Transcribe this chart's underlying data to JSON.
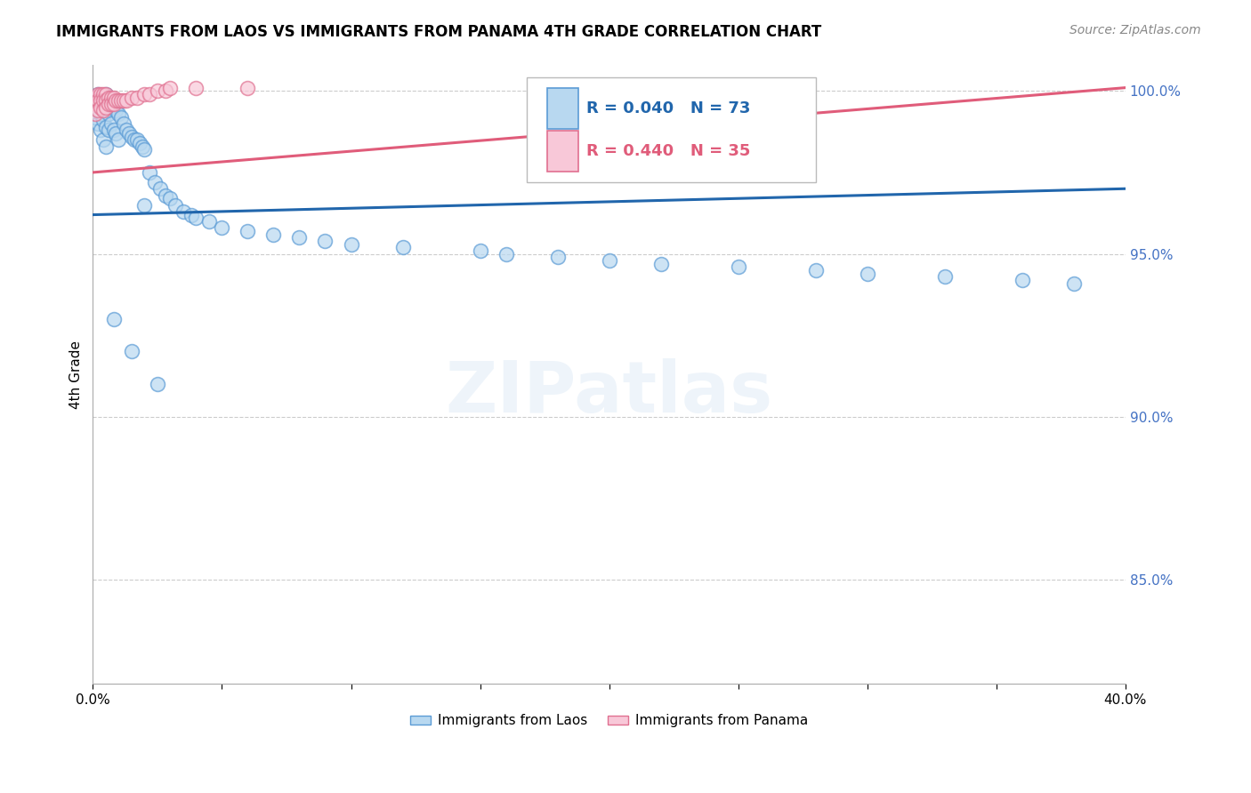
{
  "title": "IMMIGRANTS FROM LAOS VS IMMIGRANTS FROM PANAMA 4TH GRADE CORRELATION CHART",
  "source": "Source: ZipAtlas.com",
  "ylabel": "4th Grade",
  "watermark": "ZIPatlas",
  "x_min": 0.0,
  "x_max": 0.4,
  "y_min": 0.818,
  "y_max": 1.008,
  "y_ticks": [
    0.85,
    0.9,
    0.95,
    1.0
  ],
  "y_tick_labels": [
    "85.0%",
    "90.0%",
    "95.0%",
    "100.0%"
  ],
  "legend_laos": "Immigrants from Laos",
  "legend_panama": "Immigrants from Panama",
  "r_laos": 0.04,
  "n_laos": 73,
  "r_panama": 0.44,
  "n_panama": 35,
  "color_laos_face": "#b8d8f0",
  "color_laos_edge": "#5b9bd5",
  "color_panama_face": "#f8c8d8",
  "color_panama_edge": "#e07090",
  "line_color_laos": "#2166ac",
  "line_color_panama": "#e05c7a",
  "laos_line_x0": 0.0,
  "laos_line_y0": 0.962,
  "laos_line_x1": 0.4,
  "laos_line_y1": 0.97,
  "panama_line_x0": 0.0,
  "panama_line_y0": 0.975,
  "panama_line_x1": 0.4,
  "panama_line_y1": 1.001,
  "laos_x": [
    0.001,
    0.001,
    0.001,
    0.002,
    0.002,
    0.002,
    0.002,
    0.003,
    0.003,
    0.003,
    0.003,
    0.004,
    0.004,
    0.004,
    0.004,
    0.005,
    0.005,
    0.005,
    0.005,
    0.005,
    0.006,
    0.006,
    0.006,
    0.007,
    0.007,
    0.008,
    0.008,
    0.009,
    0.009,
    0.01,
    0.01,
    0.011,
    0.012,
    0.013,
    0.014,
    0.015,
    0.016,
    0.017,
    0.018,
    0.019,
    0.02,
    0.02,
    0.022,
    0.024,
    0.026,
    0.028,
    0.03,
    0.032,
    0.035,
    0.038,
    0.04,
    0.045,
    0.05,
    0.06,
    0.07,
    0.08,
    0.09,
    0.1,
    0.12,
    0.15,
    0.16,
    0.18,
    0.2,
    0.22,
    0.25,
    0.28,
    0.3,
    0.33,
    0.36,
    0.38,
    0.008,
    0.015,
    0.025
  ],
  "laos_y": [
    0.998,
    0.995,
    0.992,
    0.999,
    0.997,
    0.994,
    0.99,
    0.998,
    0.996,
    0.993,
    0.988,
    0.998,
    0.995,
    0.991,
    0.985,
    0.999,
    0.997,
    0.994,
    0.989,
    0.983,
    0.997,
    0.993,
    0.988,
    0.996,
    0.99,
    0.995,
    0.988,
    0.994,
    0.987,
    0.993,
    0.985,
    0.992,
    0.99,
    0.988,
    0.987,
    0.986,
    0.985,
    0.985,
    0.984,
    0.983,
    0.982,
    0.965,
    0.975,
    0.972,
    0.97,
    0.968,
    0.967,
    0.965,
    0.963,
    0.962,
    0.961,
    0.96,
    0.958,
    0.957,
    0.956,
    0.955,
    0.954,
    0.953,
    0.952,
    0.951,
    0.95,
    0.949,
    0.948,
    0.947,
    0.946,
    0.945,
    0.944,
    0.943,
    0.942,
    0.941,
    0.93,
    0.92,
    0.91
  ],
  "panama_x": [
    0.001,
    0.001,
    0.001,
    0.002,
    0.002,
    0.002,
    0.003,
    0.003,
    0.003,
    0.004,
    0.004,
    0.004,
    0.005,
    0.005,
    0.005,
    0.006,
    0.006,
    0.007,
    0.007,
    0.008,
    0.008,
    0.009,
    0.01,
    0.011,
    0.012,
    0.013,
    0.015,
    0.017,
    0.02,
    0.022,
    0.025,
    0.028,
    0.03,
    0.04,
    0.06
  ],
  "panama_y": [
    0.998,
    0.996,
    0.993,
    0.999,
    0.997,
    0.994,
    0.999,
    0.997,
    0.995,
    0.999,
    0.997,
    0.994,
    0.999,
    0.997,
    0.995,
    0.998,
    0.996,
    0.998,
    0.996,
    0.998,
    0.996,
    0.997,
    0.997,
    0.997,
    0.997,
    0.997,
    0.998,
    0.998,
    0.999,
    0.999,
    1.0,
    1.0,
    1.001,
    1.001,
    1.001
  ]
}
